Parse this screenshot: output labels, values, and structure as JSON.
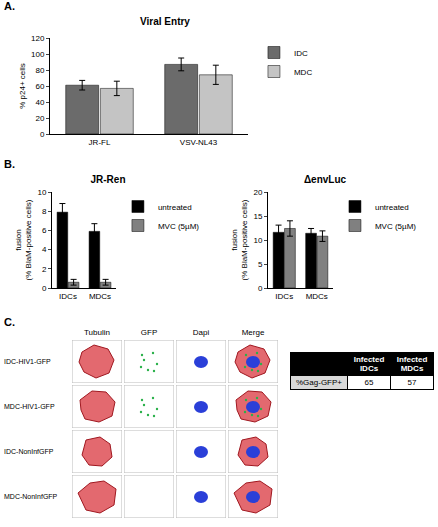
{
  "chart_data": [
    {
      "panel_label": "A.",
      "type": "bar",
      "title": "Viral Entry",
      "y_label": "% p24+ cells",
      "categories": [
        "JR-FL",
        "VSV-NL43"
      ],
      "series": [
        {
          "name": "IDC",
          "color": "#6b6b6b",
          "values": [
            61,
            87
          ],
          "errors": [
            6,
            8
          ]
        },
        {
          "name": "MDC",
          "color": "#c4c4c4",
          "values": [
            57,
            74
          ],
          "errors": [
            9,
            12
          ]
        }
      ],
      "ylim": [
        0,
        120
      ],
      "yticks": [
        0,
        20,
        40,
        60,
        80,
        100,
        120
      ],
      "grid": false,
      "legend": "right"
    },
    {
      "panel_label": "B.",
      "type": "bar",
      "title": "JR-Ren",
      "y_label": "fusion\n(% BlaM-positive cells)",
      "categories": [
        "IDCs",
        "MDCs"
      ],
      "series": [
        {
          "name": "untreated",
          "color": "#000000",
          "values": [
            7.9,
            5.9
          ],
          "errors": [
            0.9,
            0.8
          ]
        },
        {
          "name": "MVC (5µM)",
          "color": "#808080",
          "values": [
            0.6,
            0.6
          ],
          "errors": [
            0.3,
            0.3
          ]
        }
      ],
      "ylim": [
        0,
        10
      ],
      "yticks": [
        0,
        2,
        4,
        6,
        8,
        10
      ],
      "grid": false,
      "legend": "right"
    },
    {
      "type": "bar",
      "title": "ΔenvLuc",
      "y_label": "fusion\n(% BlaM-positive cells)",
      "categories": [
        "IDCs",
        "MDCs"
      ],
      "series": [
        {
          "name": "untreated",
          "color": "#000000",
          "values": [
            11.6,
            11.4
          ],
          "errors": [
            1.5,
            1
          ]
        },
        {
          "name": "MVC (5µM)",
          "color": "#808080",
          "values": [
            12.4,
            10.8
          ],
          "errors": [
            1.6,
            1.1
          ]
        }
      ],
      "ylim": [
        0,
        20
      ],
      "yticks": [
        0,
        5,
        10,
        15,
        20
      ],
      "grid": false,
      "legend": "right"
    }
  ],
  "images": {
    "panel_label": "C.",
    "columns": [
      "Tubulin",
      "GFP",
      "Dapi",
      "Merge"
    ],
    "rows": [
      "IDC-HIV1-GFP",
      "MDC-HIV1-GFP",
      "IDC-NonInfGFP",
      "MDC-NonInfGFP"
    ]
  },
  "table": {
    "columns": [
      "Infected IDCs",
      "Infected MDCs"
    ],
    "rows": [
      {
        "label": "%Gag-GFP+",
        "values": [
          65,
          57
        ]
      }
    ]
  }
}
